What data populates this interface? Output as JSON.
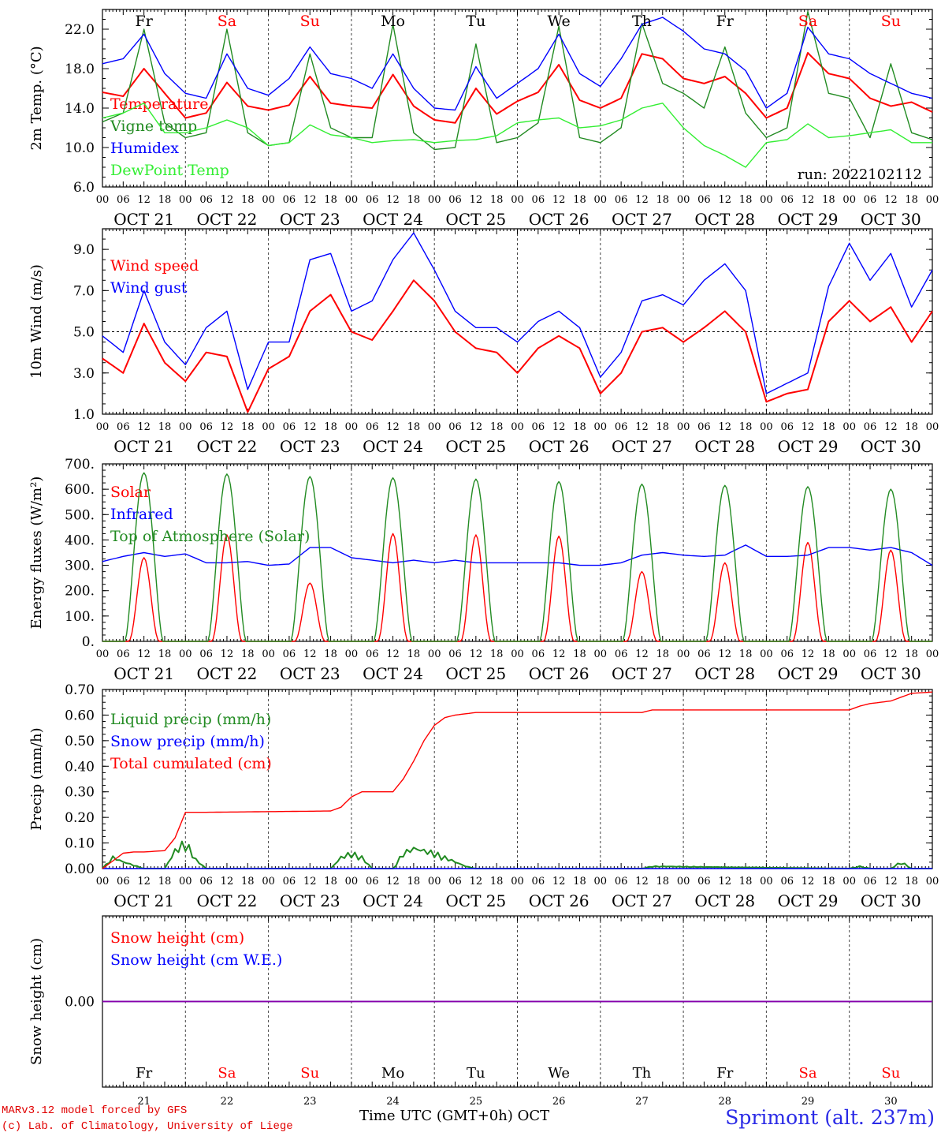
{
  "chart_data": [
    {
      "type": "line",
      "ylabel": "2m Temp. (°C)",
      "ylim": [
        6.0,
        24.0
      ],
      "yticks": [
        "6.0",
        "10.0",
        "14.0",
        "18.0",
        "22.0"
      ],
      "legend_placement": "top-left",
      "annotation": "run: 2022102112",
      "series": [
        {
          "name": "Temperature",
          "color": "#ff0000",
          "x": [
            0,
            6,
            12,
            18,
            24,
            30,
            36,
            42,
            48,
            54,
            60,
            66,
            72,
            78,
            84,
            90,
            96,
            102,
            108,
            114,
            120,
            126,
            132,
            138,
            144,
            150,
            156,
            162,
            168,
            174,
            180,
            186,
            192,
            198,
            204,
            210,
            216,
            222,
            228,
            234,
            240
          ],
          "values": [
            15.6,
            15.2,
            18.0,
            15.5,
            13.0,
            13.5,
            16.6,
            14.2,
            13.8,
            14.3,
            17.2,
            14.5,
            14.2,
            14.0,
            17.4,
            14.2,
            12.8,
            12.5,
            16.0,
            13.4,
            14.7,
            15.6,
            18.4,
            14.8,
            14.0,
            15.0,
            19.5,
            19.0,
            17.0,
            16.5,
            17.2,
            15.5,
            13.0,
            14.0,
            19.6,
            17.5,
            17.0,
            15.0,
            14.2,
            14.6,
            13.6
          ]
        },
        {
          "name": "Vigne temp",
          "color": "#228b22",
          "x": [
            0,
            6,
            12,
            18,
            24,
            30,
            36,
            42,
            48,
            54,
            60,
            66,
            72,
            78,
            84,
            90,
            96,
            102,
            108,
            114,
            120,
            126,
            132,
            138,
            144,
            150,
            156,
            162,
            168,
            174,
            180,
            186,
            192,
            198,
            204,
            210,
            216,
            222,
            228,
            234,
            240
          ],
          "values": [
            12.6,
            13.5,
            22.0,
            12.5,
            11.0,
            11.5,
            22.0,
            11.5,
            10.2,
            10.5,
            19.5,
            12.0,
            11.0,
            11.0,
            22.5,
            11.5,
            9.8,
            10.0,
            20.5,
            10.5,
            11.0,
            12.5,
            22.3,
            11.0,
            10.5,
            12.0,
            22.6,
            16.5,
            15.5,
            14.0,
            20.2,
            13.5,
            11.0,
            12.0,
            23.8,
            15.5,
            15.0,
            11.0,
            18.5,
            11.5,
            10.8
          ]
        },
        {
          "name": "Humidex",
          "color": "#0000ff",
          "x": [
            0,
            6,
            12,
            18,
            24,
            30,
            36,
            42,
            48,
            54,
            60,
            66,
            72,
            78,
            84,
            90,
            96,
            102,
            108,
            114,
            120,
            126,
            132,
            138,
            144,
            150,
            156,
            162,
            168,
            174,
            180,
            186,
            192,
            198,
            204,
            210,
            216,
            222,
            228,
            234,
            240
          ],
          "values": [
            18.5,
            19.0,
            21.5,
            17.5,
            15.5,
            15.0,
            19.5,
            16.0,
            15.3,
            17.0,
            20.2,
            17.5,
            17.0,
            16.0,
            19.5,
            16.0,
            14.0,
            13.8,
            18.2,
            15.0,
            16.5,
            18.0,
            21.5,
            17.5,
            16.2,
            19.0,
            22.5,
            23.2,
            21.8,
            20.0,
            19.5,
            17.8,
            14.0,
            15.5,
            22.2,
            19.5,
            19.0,
            17.5,
            16.5,
            15.5,
            15.0
          ]
        },
        {
          "name": "DewPoint Temp",
          "color": "#33ee33",
          "x": [
            0,
            6,
            12,
            18,
            24,
            30,
            36,
            42,
            48,
            54,
            60,
            66,
            72,
            78,
            84,
            90,
            96,
            102,
            108,
            114,
            120,
            126,
            132,
            138,
            144,
            150,
            156,
            162,
            168,
            174,
            180,
            186,
            192,
            198,
            204,
            210,
            216,
            222,
            228,
            234,
            240
          ],
          "values": [
            13.0,
            13.5,
            14.5,
            11.5,
            11.5,
            12.0,
            12.8,
            12.0,
            10.2,
            10.5,
            12.3,
            11.3,
            11.0,
            10.5,
            10.7,
            10.8,
            10.5,
            10.7,
            10.8,
            11.2,
            12.5,
            12.8,
            13.0,
            12.0,
            12.2,
            12.8,
            14.0,
            14.5,
            12.0,
            10.2,
            9.2,
            8.0,
            10.5,
            10.8,
            12.4,
            11.0,
            11.2,
            11.5,
            11.8,
            10.5,
            10.5
          ]
        }
      ]
    },
    {
      "type": "line",
      "ylabel": "10m Wind (m/s)",
      "ylim": [
        1.0,
        10.0
      ],
      "yticks": [
        "1.0",
        "3.0",
        "5.0",
        "7.0",
        "9.0"
      ],
      "reference_line": 5.0,
      "legend_placement": "top-left",
      "series": [
        {
          "name": "Wind speed",
          "color": "#ff0000",
          "x": [
            0,
            6,
            12,
            18,
            24,
            30,
            36,
            42,
            48,
            54,
            60,
            66,
            72,
            78,
            84,
            90,
            96,
            102,
            108,
            114,
            120,
            126,
            132,
            138,
            144,
            150,
            156,
            162,
            168,
            174,
            180,
            186,
            192,
            198,
            204,
            210,
            216,
            222,
            228,
            234,
            240
          ],
          "values": [
            3.7,
            3.0,
            5.4,
            3.5,
            2.6,
            4.0,
            3.8,
            1.1,
            3.2,
            3.8,
            6.0,
            6.8,
            5.0,
            4.6,
            6.0,
            7.5,
            6.5,
            5.0,
            4.2,
            4.0,
            3.0,
            4.2,
            4.8,
            4.2,
            2.0,
            3.0,
            5.0,
            5.2,
            4.5,
            5.2,
            6.0,
            5.0,
            1.6,
            2.0,
            2.2,
            5.5,
            6.5,
            5.5,
            6.2,
            4.5,
            6.0
          ]
        },
        {
          "name": "Wind gust",
          "color": "#0000ff",
          "x": [
            0,
            6,
            12,
            18,
            24,
            30,
            36,
            42,
            48,
            54,
            60,
            66,
            72,
            78,
            84,
            90,
            96,
            102,
            108,
            114,
            120,
            126,
            132,
            138,
            144,
            150,
            156,
            162,
            168,
            174,
            180,
            186,
            192,
            198,
            204,
            210,
            216,
            222,
            228,
            234,
            240
          ],
          "values": [
            4.8,
            4.0,
            7.0,
            4.5,
            3.4,
            5.2,
            6.0,
            2.2,
            4.5,
            4.5,
            8.5,
            8.8,
            6.0,
            6.5,
            8.5,
            9.8,
            8.0,
            6.0,
            5.2,
            5.2,
            4.5,
            5.5,
            6.0,
            5.2,
            2.8,
            4.0,
            6.5,
            6.8,
            6.3,
            7.5,
            8.3,
            7.0,
            2.0,
            2.5,
            3.0,
            7.2,
            9.3,
            7.5,
            8.8,
            6.2,
            8.0
          ]
        }
      ]
    },
    {
      "type": "line",
      "ylabel": "Energy fluxes (W/m²)",
      "ylim": [
        0,
        700
      ],
      "yticks": [
        "0.",
        "100.",
        "200.",
        "300.",
        "400.",
        "500.",
        "600.",
        "700."
      ],
      "legend_placement": "top-left",
      "series": [
        {
          "name": "Solar",
          "color": "#ff0000",
          "daily_peak": [
            330,
            420,
            230,
            425,
            420,
            415,
            275,
            310,
            390,
            360
          ]
        },
        {
          "name": "Infrared",
          "color": "#0000ff",
          "x": [
            0,
            6,
            12,
            18,
            24,
            30,
            36,
            42,
            48,
            54,
            60,
            66,
            72,
            78,
            84,
            90,
            96,
            102,
            108,
            114,
            120,
            126,
            132,
            138,
            144,
            150,
            156,
            162,
            168,
            174,
            180,
            186,
            192,
            198,
            204,
            210,
            216,
            222,
            228,
            234,
            240
          ],
          "values": [
            315,
            335,
            350,
            335,
            345,
            310,
            310,
            315,
            300,
            305,
            370,
            370,
            330,
            320,
            310,
            320,
            310,
            320,
            310,
            310,
            310,
            310,
            310,
            300,
            300,
            310,
            340,
            350,
            340,
            335,
            340,
            380,
            335,
            335,
            340,
            370,
            370,
            360,
            370,
            350,
            300
          ]
        },
        {
          "name": "Top of Atmosphere (Solar)",
          "color": "#228b22",
          "daily_peak": [
            665,
            660,
            650,
            645,
            640,
            630,
            620,
            615,
            610,
            600
          ]
        }
      ]
    },
    {
      "type": "line",
      "ylabel": "Precip (mm/h)",
      "ylim": [
        0,
        0.7
      ],
      "yticks": [
        "0.00",
        "0.10",
        "0.20",
        "0.30",
        "0.40",
        "0.50",
        "0.60",
        "0.70"
      ],
      "legend_placement": "top-left",
      "series": [
        {
          "name": "Liquid precip (mm/h)",
          "color": "#228b22",
          "x": [
            0,
            3,
            6,
            12,
            18,
            21,
            24,
            27,
            30,
            66,
            69,
            72,
            75,
            78,
            84,
            87,
            90,
            93,
            96,
            99,
            102,
            105,
            108,
            156,
            159,
            216,
            219,
            222,
            228,
            231,
            234,
            240
          ],
          "values": [
            0,
            0.05,
            0.03,
            0,
            0,
            0.08,
            0.12,
            0.04,
            0,
            0,
            0.05,
            0.07,
            0.05,
            0,
            0,
            0.07,
            0.09,
            0.08,
            0.07,
            0.05,
            0.03,
            0.01,
            0,
            0,
            0.01,
            0,
            0.01,
            0,
            0,
            0.03,
            0,
            0
          ]
        },
        {
          "name": "Snow precip (mm/h)",
          "color": "#0000ff",
          "x": [
            0,
            240
          ],
          "values": [
            0,
            0
          ]
        },
        {
          "name": "Total cumulated (cm)",
          "color": "#ff0000",
          "x": [
            0,
            3,
            6,
            9,
            12,
            18,
            21,
            24,
            27,
            30,
            66,
            69,
            72,
            75,
            78,
            84,
            87,
            90,
            93,
            96,
            99,
            102,
            105,
            108,
            156,
            159,
            216,
            219,
            222,
            228,
            231,
            234,
            240
          ],
          "values": [
            0,
            0.03,
            0.06,
            0.065,
            0.065,
            0.07,
            0.12,
            0.22,
            0.22,
            0.22,
            0.225,
            0.24,
            0.28,
            0.3,
            0.3,
            0.3,
            0.35,
            0.42,
            0.5,
            0.56,
            0.59,
            0.6,
            0.605,
            0.61,
            0.61,
            0.62,
            0.62,
            0.635,
            0.645,
            0.655,
            0.67,
            0.685,
            0.69
          ]
        }
      ]
    },
    {
      "type": "line",
      "ylabel": "Snow height (cm)",
      "yticks": [
        "0.00"
      ],
      "legend_placement": "top-left",
      "series": [
        {
          "name": "Snow height (cm)",
          "color": "#ff0000",
          "x": [
            0,
            240
          ],
          "values": [
            0,
            0
          ]
        },
        {
          "name": "Snow height (cm W.E.)",
          "color": "#0000ff",
          "x": [
            0,
            240
          ],
          "values": [
            0,
            0
          ]
        }
      ]
    }
  ],
  "hour_ticks": [
    "00",
    "06",
    "12",
    "18"
  ],
  "date_labels": [
    "OCT 21",
    "OCT 22",
    "OCT 23",
    "OCT 24",
    "OCT 25",
    "OCT 26",
    "OCT 27",
    "OCT 28",
    "OCT 29",
    "OCT 30"
  ],
  "day_names": [
    "Fr",
    "Sa",
    "Su",
    "Mo",
    "Tu",
    "We",
    "Th",
    "Fr",
    "Sa",
    "Su"
  ],
  "weekend_color": "#ff0000",
  "day_numbers": [
    "21",
    "22",
    "23",
    "24",
    "25",
    "26",
    "27",
    "28",
    "29",
    "30"
  ],
  "x_axis_title": "Time UTC (GMT+0h)",
  "x_axis_month": "OCT",
  "credits": {
    "line1": "MARv3.12 model forced by GFS",
    "line2": "(c) Lab. of Climatology, University of Liege"
  },
  "station": "Sprimont (alt. 237m)"
}
